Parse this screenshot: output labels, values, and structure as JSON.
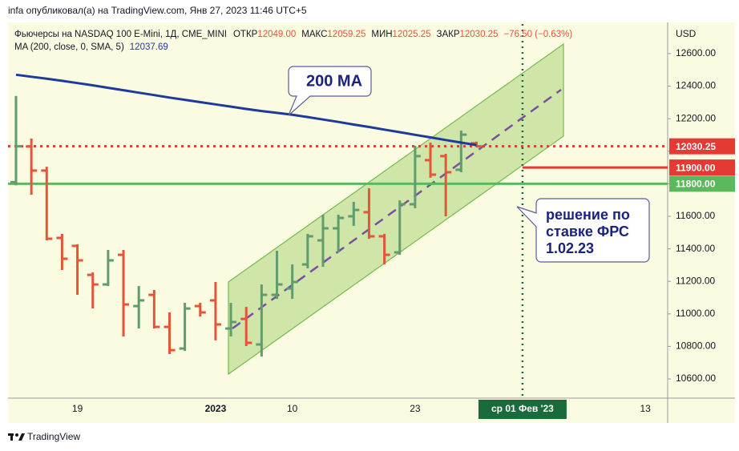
{
  "header": "infa опубликовал(а) на TradingView.com, Янв 27, 2023 11:46 UTC+5",
  "footer": "TradingView",
  "chart_data": {
    "type": "ohlc",
    "currency": "USD",
    "categories": [
      null,
      null,
      null,
      null,
      "19",
      null,
      null,
      null,
      null,
      null,
      null,
      null,
      null,
      "2023",
      null,
      null,
      null,
      null,
      "10",
      null,
      null,
      null,
      null,
      null,
      null,
      null,
      "23",
      null,
      null,
      null,
      null,
      null,
      null,
      "ср 01 Фев '23",
      null,
      null,
      null,
      null,
      null,
      null,
      null,
      "13",
      null
    ],
    "crosshair": {
      "category_index": 33,
      "color": "#1a6b3c"
    },
    "ylim": [
      10482,
      12782
    ],
    "yticks": [
      {
        "value": 10600,
        "label": "10600.00"
      },
      {
        "value": 10800,
        "label": "10800.00"
      },
      {
        "value": 11000,
        "label": "11000.00"
      },
      {
        "value": 11200,
        "label": "11200.00"
      },
      {
        "value": 11400,
        "label": "11400.00"
      },
      {
        "value": 11600,
        "label": "11600.00"
      },
      {
        "value": 11800,
        "label": "11800.00"
      },
      {
        "value": 12000,
        "label": "12000.00"
      },
      {
        "value": 12200,
        "label": "12200.00"
      },
      {
        "value": 12400,
        "label": "12400.00"
      },
      {
        "value": 12600,
        "label": "12600.00"
      }
    ],
    "grid": false,
    "series": [
      {
        "name": "Фьючерсы на NASDAQ 100 E-Mini, 1Д, CME_MINI",
        "type": "ohlc",
        "up_color": "#5f9c6e",
        "down_color": "#e4553a",
        "open": [
          11810,
          12029,
          11881,
          11467,
          11418,
          11240,
          11181,
          11363,
          11048,
          11117,
          10920,
          10787,
          11048,
          11083,
          10910,
          10969,
          10812,
          11117,
          11156,
          11304,
          11452,
          11526,
          11600,
          11625,
          11477,
          11378,
          11674,
          11945,
          11970,
          11886,
          12049,
          null,
          null,
          null,
          null,
          null,
          null,
          null,
          null,
          null,
          null,
          null,
          null
        ],
        "high": [
          12340,
          12078,
          11905,
          11492,
          11428,
          11255,
          11393,
          11393,
          11171,
          11147,
          11009,
          11068,
          11068,
          11196,
          11068,
          11043,
          11181,
          11388,
          11304,
          11492,
          11610,
          11610,
          11689,
          11772,
          11492,
          11698,
          12034,
          12053,
          11984,
          12127,
          12059.25,
          null,
          null,
          null,
          null,
          null,
          null,
          null,
          null,
          null,
          null,
          null,
          null
        ],
        "low": [
          11790,
          11733,
          11452,
          11270,
          11117,
          11033,
          11171,
          10861,
          10910,
          10910,
          10753,
          10772,
          10984,
          10837,
          10861,
          10802,
          10738,
          11092,
          11092,
          11280,
          11290,
          11378,
          11541,
          11462,
          11304,
          11363,
          11650,
          11837,
          11600,
          11871,
          12025.25,
          null,
          null,
          null,
          null,
          null,
          null,
          null,
          null,
          null,
          null,
          null,
          null
        ],
        "close": [
          12030,
          11881,
          11462,
          11339,
          11329,
          11181,
          11329,
          11058,
          11083,
          10920,
          10777,
          11033,
          11009,
          10935,
          10950,
          10822,
          11117,
          11181,
          11196,
          11477,
          11526,
          11590,
          11639,
          11477,
          11363,
          11674,
          11970,
          11856,
          11871,
          12102,
          12030.25,
          null,
          null,
          null,
          null,
          null,
          null,
          null,
          null,
          null,
          null,
          null,
          null
        ]
      },
      {
        "name": "MA (200, close, 0, SMA, 5)",
        "type": "line",
        "color": "#1e3a9a",
        "values": [
          12470,
          12458,
          12446,
          12433,
          12419,
          12405,
          12390,
          12375,
          12360,
          12345,
          12330,
          12316,
          12302,
          12288,
          12274,
          12260,
          12247,
          12236,
          12224,
          12210,
          12195,
          12180,
          12164,
          12149,
          12133,
          12117,
          12101,
          12085,
          12069,
          12053,
          12037.69,
          null,
          null,
          null,
          null,
          null,
          null,
          null,
          null,
          null,
          null,
          null,
          null
        ]
      }
    ],
    "ohlc_legend": [
      {
        "label": "ОТКР",
        "value": "12049.00"
      },
      {
        "label": "МАКС",
        "value": "12059.25"
      },
      {
        "label": "МИН",
        "value": "12025.25"
      },
      {
        "label": "ЗАКР",
        "value": "12030.25"
      }
    ],
    "change": "−76.50 (−0.63%)",
    "hlines": [
      {
        "value": 12030.25,
        "color": "#e53935",
        "style": "dotted"
      },
      {
        "value": 11900,
        "label": "11900.00",
        "color": "#e53935",
        "style": "ray"
      },
      {
        "value": 11800,
        "label": "11800.00",
        "color": "#5cb85c",
        "style": "solid"
      }
    ],
    "annotations": [
      {
        "text": "200 MA"
      },
      {
        "lines": [
          "решение по",
          "ставке ФРС",
          "1.02.23"
        ]
      }
    ]
  }
}
